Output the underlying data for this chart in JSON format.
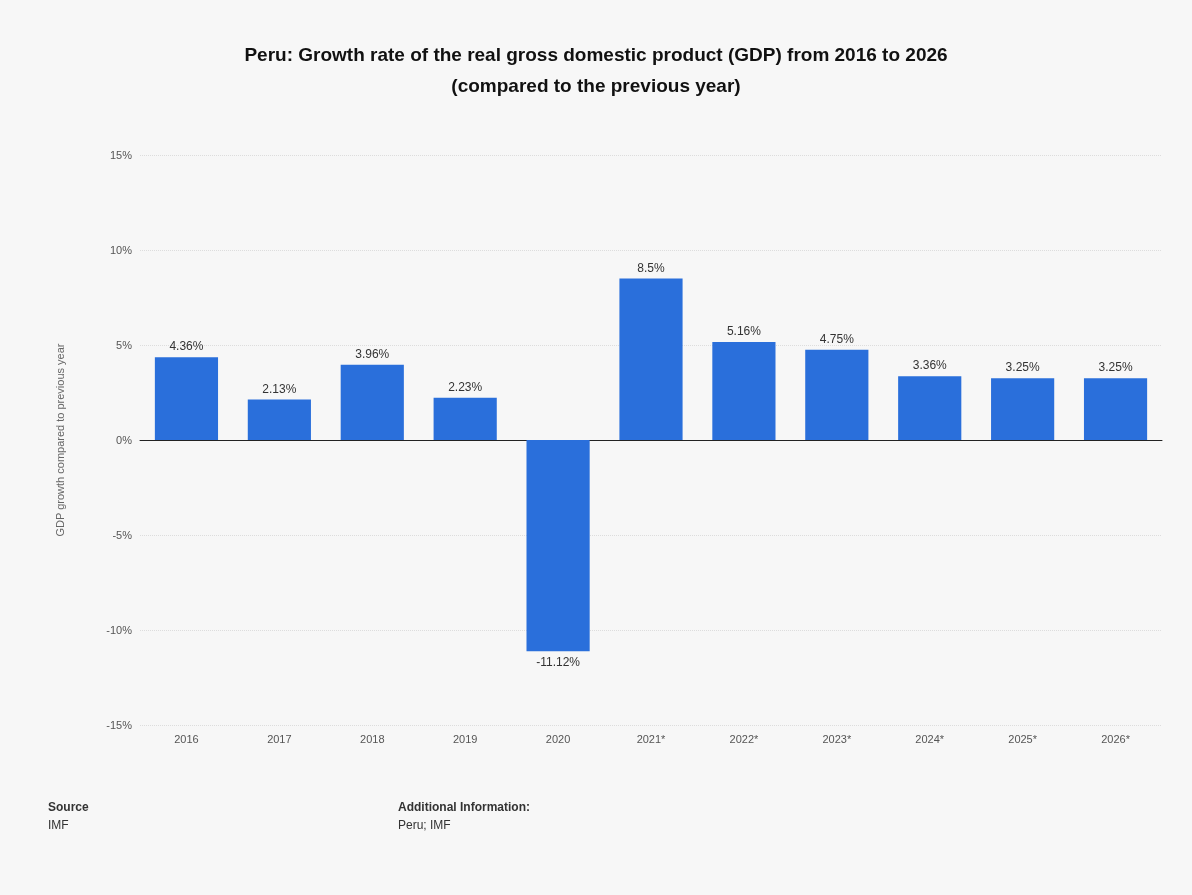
{
  "chart_data": {
    "type": "bar",
    "title": "Peru: Growth rate of the real gross domestic product (GDP) from 2016 to 2026",
    "subtitle": "(compared to the previous year)",
    "ylabel": "GDP growth compared to previous year",
    "categories": [
      "2016",
      "2017",
      "2018",
      "2019",
      "2020",
      "2021*",
      "2022*",
      "2023*",
      "2024*",
      "2025*",
      "2026*"
    ],
    "values": [
      4.36,
      2.13,
      3.96,
      2.23,
      -11.12,
      8.5,
      5.16,
      4.75,
      3.36,
      3.25,
      3.25
    ],
    "value_labels": [
      "4.36%",
      "2.13%",
      "3.96%",
      "2.23%",
      "-11.12%",
      "8.5%",
      "5.16%",
      "4.75%",
      "3.36%",
      "3.25%",
      "3.25%"
    ],
    "color": "#2a6fdb",
    "ylim": [
      -15,
      15
    ],
    "yticks": [
      {
        "value": -15,
        "label": "-15%"
      },
      {
        "value": -10,
        "label": "-10%"
      },
      {
        "value": -5,
        "label": "-5%"
      },
      {
        "value": 0,
        "label": "0%"
      },
      {
        "value": 5,
        "label": "5%"
      },
      {
        "value": 10,
        "label": "10%"
      },
      {
        "value": 15,
        "label": "15%"
      }
    ],
    "grid": "y",
    "annotations": [
      "Source",
      "IMF",
      "Additional Information:",
      "Peru; IMF"
    ]
  }
}
